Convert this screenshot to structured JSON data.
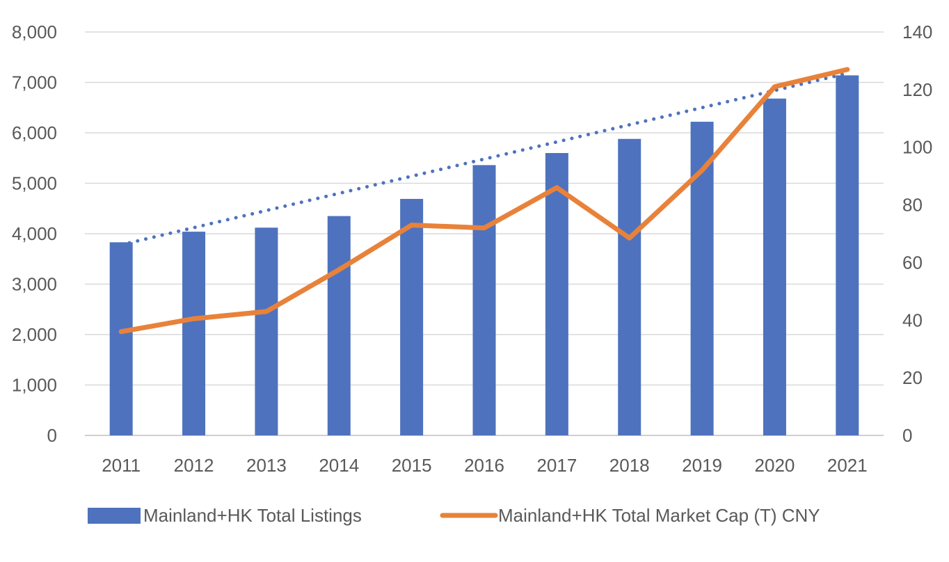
{
  "chart_data": {
    "type": "bar",
    "categories": [
      "2011",
      "2012",
      "2013",
      "2014",
      "2015",
      "2016",
      "2017",
      "2018",
      "2019",
      "2020",
      "2021"
    ],
    "series": [
      {
        "name": "Mainland+HK Total Listings",
        "type": "bar",
        "axis": "left",
        "color": "#4E72BE",
        "values": [
          3830,
          4040,
          4120,
          4350,
          4690,
          5360,
          5600,
          5880,
          6220,
          6680,
          7140
        ]
      },
      {
        "name": "Mainland+HK Total Market Cap (T) CNY",
        "type": "line",
        "axis": "right",
        "color": "#E8823A",
        "values": [
          36,
          40.5,
          43,
          57.5,
          73,
          72,
          86,
          68.5,
          92,
          121,
          127
        ]
      }
    ],
    "trendline": {
      "of_series": "Mainland+HK Total Listings",
      "style": "dotted",
      "color": "#4E72BE",
      "start": 3780,
      "end": 7180
    },
    "y_left": {
      "ylim": [
        0,
        8000
      ],
      "ticks": [
        "0",
        "1,000",
        "2,000",
        "3,000",
        "4,000",
        "5,000",
        "6,000",
        "7,000",
        "8,000"
      ]
    },
    "y_right": {
      "ylim": [
        0,
        140
      ],
      "ticks": [
        "0",
        "20",
        "40",
        "60",
        "80",
        "100",
        "120",
        "140"
      ]
    },
    "grid": true,
    "legend_position": "bottom"
  }
}
